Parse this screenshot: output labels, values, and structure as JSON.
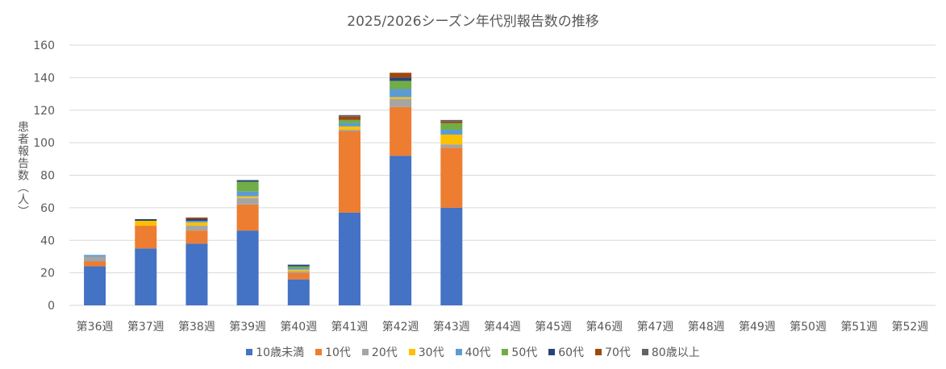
{
  "chart_data": {
    "type": "bar",
    "stacked": true,
    "title": "2025/2026シーズン年代別報告数の推移",
    "xlabel": "",
    "ylabel": "患者報告数（人）",
    "ylim": [
      0,
      160
    ],
    "yticks": [
      0,
      20,
      40,
      60,
      80,
      100,
      120,
      140,
      160
    ],
    "grid": true,
    "legend_position": "bottom",
    "categories": [
      "第36週",
      "第37週",
      "第38週",
      "第39週",
      "第40週",
      "第41週",
      "第42週",
      "第43週",
      "第44週",
      "第45週",
      "第46週",
      "第47週",
      "第48週",
      "第49週",
      "第50週",
      "第51週",
      "第52週"
    ],
    "series": [
      {
        "name": "10歳未満",
        "color": "#4472C4",
        "values": [
          24,
          35,
          38,
          46,
          16,
          57,
          92,
          60,
          null,
          null,
          null,
          null,
          null,
          null,
          null,
          null,
          null
        ]
      },
      {
        "name": "10代",
        "color": "#ED7D31",
        "values": [
          3,
          14,
          8,
          16,
          4,
          50,
          30,
          37,
          null,
          null,
          null,
          null,
          null,
          null,
          null,
          null,
          null
        ]
      },
      {
        "name": "20代",
        "color": "#A5A5A5",
        "values": [
          3,
          0,
          3,
          4,
          1,
          1,
          5,
          2,
          null,
          null,
          null,
          null,
          null,
          null,
          null,
          null,
          null
        ]
      },
      {
        "name": "30代",
        "color": "#FFC000",
        "values": [
          0,
          3,
          2,
          1,
          1,
          2,
          1,
          6,
          null,
          null,
          null,
          null,
          null,
          null,
          null,
          null,
          null
        ]
      },
      {
        "name": "40代",
        "color": "#5B9BD5",
        "values": [
          1,
          0,
          1,
          3,
          1,
          2,
          5,
          3,
          null,
          null,
          null,
          null,
          null,
          null,
          null,
          null,
          null
        ]
      },
      {
        "name": "50代",
        "color": "#70AD47",
        "values": [
          0,
          0,
          0,
          6,
          1,
          2,
          5,
          4,
          null,
          null,
          null,
          null,
          null,
          null,
          null,
          null,
          null
        ]
      },
      {
        "name": "60代",
        "color": "#264478",
        "values": [
          0,
          1,
          1,
          1,
          1,
          0,
          2,
          0,
          null,
          null,
          null,
          null,
          null,
          null,
          null,
          null,
          null
        ]
      },
      {
        "name": "70代",
        "color": "#9E480E",
        "values": [
          0,
          0,
          1,
          0,
          0,
          2,
          3,
          1,
          null,
          null,
          null,
          null,
          null,
          null,
          null,
          null,
          null
        ]
      },
      {
        "name": "80歳以上",
        "color": "#636363",
        "values": [
          0,
          0,
          0,
          0,
          0,
          1,
          0,
          1,
          null,
          null,
          null,
          null,
          null,
          null,
          null,
          null,
          null
        ]
      }
    ]
  }
}
